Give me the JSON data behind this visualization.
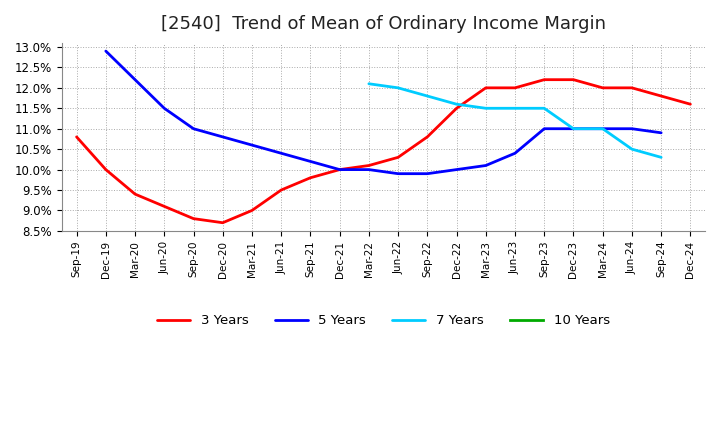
{
  "title": "[2540]  Trend of Mean of Ordinary Income Margin",
  "title_fontsize": 13,
  "background_color": "#ffffff",
  "plot_bg_color": "#ffffff",
  "grid_color": "#aaaaaa",
  "ylim": [
    0.085,
    0.131
  ],
  "yticks": [
    0.085,
    0.09,
    0.095,
    0.1,
    0.105,
    0.11,
    0.115,
    0.12,
    0.125,
    0.13
  ],
  "x_labels": [
    "Sep-19",
    "Dec-19",
    "Mar-20",
    "Jun-20",
    "Sep-20",
    "Dec-20",
    "Mar-21",
    "Jun-21",
    "Sep-21",
    "Dec-21",
    "Mar-22",
    "Jun-22",
    "Sep-22",
    "Dec-22",
    "Mar-23",
    "Jun-23",
    "Sep-23",
    "Dec-23",
    "Mar-24",
    "Jun-24",
    "Sep-24",
    "Dec-24"
  ],
  "series": {
    "3 Years": {
      "color": "#ff0000",
      "linewidth": 2.0,
      "values": [
        0.108,
        0.1,
        0.094,
        0.091,
        0.088,
        0.087,
        0.09,
        0.095,
        0.098,
        0.1,
        0.101,
        0.103,
        0.108,
        0.115,
        0.12,
        0.12,
        0.122,
        0.122,
        0.12,
        0.12,
        0.118,
        0.116
      ]
    },
    "5 Years": {
      "color": "#0000ff",
      "linewidth": 2.0,
      "values": [
        null,
        0.129,
        0.122,
        0.115,
        0.11,
        0.108,
        0.106,
        0.104,
        0.102,
        0.1,
        0.1,
        0.099,
        0.099,
        0.1,
        0.101,
        0.104,
        0.11,
        0.11,
        0.11,
        0.11,
        0.109,
        null
      ]
    },
    "7 Years": {
      "color": "#00ccff",
      "linewidth": 2.0,
      "values": [
        null,
        null,
        null,
        null,
        null,
        null,
        null,
        null,
        null,
        null,
        0.121,
        0.12,
        0.118,
        0.116,
        0.115,
        0.115,
        0.115,
        0.11,
        0.11,
        0.105,
        0.103,
        null
      ]
    },
    "10 Years": {
      "color": "#00aa00",
      "linewidth": 2.0,
      "values": [
        null,
        null,
        null,
        null,
        null,
        null,
        null,
        null,
        null,
        null,
        null,
        null,
        null,
        null,
        null,
        null,
        null,
        null,
        null,
        null,
        null,
        null
      ]
    }
  },
  "legend_entries": [
    "3 Years",
    "5 Years",
    "7 Years",
    "10 Years"
  ]
}
